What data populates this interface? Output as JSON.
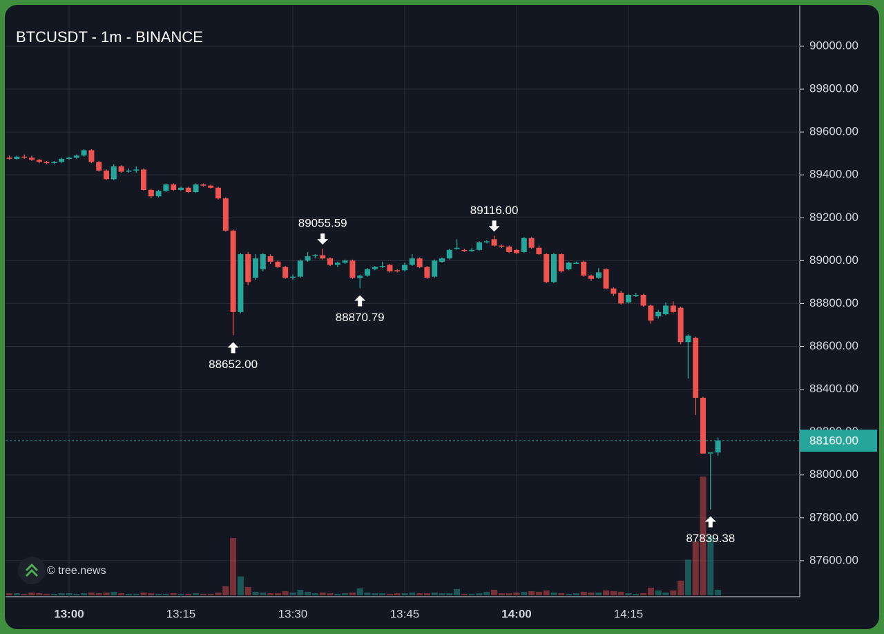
{
  "chart_data": {
    "type": "candlestick",
    "title": "BTCUSDT - 1m - BINANCE",
    "watermark": "© tree.news",
    "up_color": "#26a69a",
    "down_color": "#ef5350",
    "x": [
      "12:52",
      "12:53",
      "12:54",
      "12:55",
      "12:56",
      "12:57",
      "12:58",
      "12:59",
      "13:00",
      "13:01",
      "13:02",
      "13:03",
      "13:04",
      "13:05",
      "13:06",
      "13:07",
      "13:08",
      "13:09",
      "13:10",
      "13:11",
      "13:12",
      "13:13",
      "13:14",
      "13:15",
      "13:16",
      "13:17",
      "13:18",
      "13:19",
      "13:20",
      "13:21",
      "13:22",
      "13:23",
      "13:24",
      "13:25",
      "13:26",
      "13:27",
      "13:28",
      "13:29",
      "13:30",
      "13:31",
      "13:32",
      "13:33",
      "13:34",
      "13:35",
      "13:36",
      "13:37",
      "13:38",
      "13:39",
      "13:40",
      "13:41",
      "13:42",
      "13:43",
      "13:44",
      "13:45",
      "13:46",
      "13:47",
      "13:48",
      "13:49",
      "13:50",
      "13:51",
      "13:52",
      "13:53",
      "13:54",
      "13:55",
      "13:56",
      "13:57",
      "13:58",
      "13:59",
      "14:00",
      "14:01",
      "14:02",
      "14:03",
      "14:04",
      "14:05",
      "14:06",
      "14:07",
      "14:08",
      "14:09",
      "14:10",
      "14:11",
      "14:12",
      "14:13",
      "14:14",
      "14:15",
      "14:16",
      "14:17",
      "14:18",
      "14:19",
      "14:20",
      "14:21",
      "14:22",
      "14:23",
      "14:24",
      "14:25",
      "14:26",
      "14:27"
    ],
    "open": [
      89480,
      89475,
      89485,
      89480,
      89470,
      89460,
      89455,
      89460,
      89475,
      89480,
      89490,
      89515,
      89460,
      89420,
      89380,
      89440,
      89415,
      89420,
      89425,
      89330,
      89300,
      89325,
      89355,
      89330,
      89340,
      89320,
      89355,
      89350,
      89340,
      89290,
      89140,
      88760,
      89030,
      88920,
      88960,
      89020,
      88995,
      88970,
      88920,
      88925,
      89000,
      89020,
      89025,
      89010,
      88980,
      88990,
      89000,
      88920,
      88930,
      88960,
      88970,
      88980,
      88955,
      88955,
      88980,
      89010,
      88970,
      88925,
      88995,
      89010,
      89055,
      89050,
      89045,
      89050,
      89085,
      89100,
      89070,
      89065,
      89050,
      89040,
      89105,
      89060,
      89030,
      88900,
      89030,
      88960,
      88990,
      88995,
      88930,
      88920,
      88960,
      88870,
      88850,
      88805,
      88840,
      88840,
      88790,
      88740,
      88750,
      88790,
      88780,
      88620,
      88640,
      88360,
      88100,
      88105
    ],
    "high": [
      89490,
      89490,
      89495,
      89490,
      89475,
      89465,
      89465,
      89480,
      89485,
      89495,
      89520,
      89520,
      89465,
      89425,
      89450,
      89445,
      89430,
      89440,
      89430,
      89335,
      89330,
      89360,
      89360,
      89345,
      89345,
      89360,
      89360,
      89355,
      89345,
      89295,
      89145,
      89035,
      89040,
      89030,
      89035,
      89030,
      89000,
      88975,
      88935,
      89005,
      89040,
      89030,
      89055.59,
      89015,
      88995,
      89005,
      89005,
      88935,
      88965,
      88975,
      88995,
      88985,
      88960,
      88990,
      89030,
      89015,
      88975,
      89005,
      89015,
      89055,
      89100,
      89055,
      89060,
      89090,
      89095,
      89116,
      89075,
      89070,
      89055,
      89110,
      89110,
      89070,
      89035,
      89035,
      89035,
      88995,
      88995,
      89000,
      88935,
      88965,
      88965,
      88875,
      88860,
      88845,
      88850,
      88845,
      88795,
      88770,
      88805,
      88810,
      88785,
      88655,
      88645,
      88365,
      88100,
      88175
    ],
    "low": [
      89470,
      89470,
      89475,
      89465,
      89455,
      89450,
      89450,
      89455,
      89470,
      89475,
      89485,
      89455,
      89415,
      89375,
      89375,
      89410,
      89410,
      89410,
      89325,
      89290,
      89295,
      89320,
      89325,
      89325,
      89315,
      89315,
      89345,
      89335,
      89285,
      89135,
      88652,
      88755,
      88885,
      88910,
      88950,
      88985,
      88965,
      88915,
      88910,
      88920,
      88995,
      89010,
      89005,
      88975,
      88970,
      88985,
      88915,
      88870.79,
      88925,
      88955,
      88965,
      88945,
      88945,
      88950,
      88975,
      88965,
      88915,
      88920,
      88990,
      89005,
      89050,
      89040,
      89040,
      89045,
      89080,
      89065,
      89060,
      89035,
      89030,
      89035,
      89055,
      89025,
      88895,
      88895,
      88945,
      88955,
      88985,
      88925,
      88905,
      88915,
      88865,
      88835,
      88795,
      88800,
      88830,
      88785,
      88705,
      88730,
      88745,
      88755,
      88610,
      88450,
      88280,
      88100,
      87839.38,
      88090
    ],
    "close": [
      89475,
      89485,
      89480,
      89470,
      89460,
      89455,
      89460,
      89475,
      89480,
      89490,
      89515,
      89460,
      89420,
      89380,
      89440,
      89415,
      89420,
      89425,
      89330,
      89300,
      89325,
      89355,
      89330,
      89340,
      89320,
      89355,
      89350,
      89340,
      89290,
      89140,
      88760,
      89030,
      88900,
      89010,
      89030,
      88995,
      88970,
      88920,
      88925,
      89000,
      89020,
      89025,
      89010,
      88980,
      88990,
      89000,
      88920,
      88930,
      88960,
      88970,
      88975,
      88950,
      88950,
      88980,
      89010,
      88970,
      88920,
      89000,
      89010,
      89050,
      89060,
      89045,
      89050,
      89085,
      89090,
      89070,
      89065,
      89040,
      89035,
      89105,
      89060,
      89030,
      88900,
      89030,
      88950,
      88990,
      88990,
      88930,
      88915,
      88945,
      88870,
      88845,
      88800,
      88840,
      88840,
      88790,
      88720,
      88760,
      88790,
      88760,
      88620,
      88650,
      88360,
      88100,
      88105,
      88160
    ],
    "volume": [
      3,
      3,
      2,
      4,
      3,
      2,
      2,
      3,
      3,
      2,
      3,
      4,
      3,
      4,
      5,
      3,
      2,
      2,
      4,
      3,
      2,
      2,
      3,
      2,
      2,
      3,
      2,
      2,
      4,
      13,
      82,
      27,
      12,
      5,
      4,
      3,
      3,
      6,
      4,
      8,
      5,
      3,
      4,
      3,
      2,
      3,
      4,
      10,
      4,
      3,
      3,
      2,
      3,
      3,
      4,
      3,
      3,
      4,
      3,
      3,
      9,
      2,
      2,
      3,
      5,
      8,
      3,
      3,
      4,
      5,
      6,
      5,
      7,
      4,
      3,
      2,
      3,
      5,
      4,
      4,
      7,
      6,
      5,
      3,
      2,
      3,
      11,
      7,
      4,
      7,
      21,
      51,
      77,
      170,
      85,
      8
    ],
    "ylim": [
      87432,
      90190
    ],
    "yticks": [
      {
        "value": 87600,
        "label": "87600.00"
      },
      {
        "value": 87800,
        "label": "87800.00"
      },
      {
        "value": 88000,
        "label": "88000.00"
      },
      {
        "value": 88200,
        "label": "88200.00"
      },
      {
        "value": 88400,
        "label": "88400.00"
      },
      {
        "value": 88600,
        "label": "88600.00"
      },
      {
        "value": 88800,
        "label": "88800.00"
      },
      {
        "value": 89000,
        "label": "89000.00"
      },
      {
        "value": 89200,
        "label": "89200.00"
      },
      {
        "value": 89400,
        "label": "89400.00"
      },
      {
        "value": 89600,
        "label": "89600.00"
      },
      {
        "value": 89800,
        "label": "89800.00"
      },
      {
        "value": 90000,
        "label": "90000.00"
      }
    ],
    "xticks": [
      "13:00",
      "13:15",
      "13:30",
      "13:45",
      "14:00",
      "14:15"
    ],
    "xtick_bold": [
      true,
      false,
      false,
      false,
      true,
      false
    ],
    "last_price": {
      "value": 88160,
      "label": "88160.00"
    },
    "annotations": [
      {
        "x": "13:22",
        "value": 88652,
        "label": "88652.00",
        "position": "below"
      },
      {
        "x": "13:34",
        "value": 89055.59,
        "label": "89055.59",
        "position": "above"
      },
      {
        "x": "13:39",
        "value": 88870.79,
        "label": "88870.79",
        "position": "below"
      },
      {
        "x": "13:57",
        "value": 89116,
        "label": "89116.00",
        "position": "above"
      },
      {
        "x": "14:26",
        "value": 87839.38,
        "label": "87839.38",
        "position": "below"
      }
    ],
    "grid": true
  }
}
